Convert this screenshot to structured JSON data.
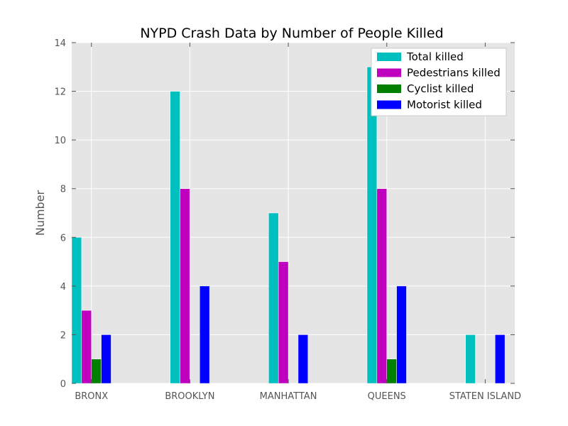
{
  "chart_data": {
    "type": "bar",
    "title": "NYPD Crash Data by Number of People Killed",
    "xlabel": "",
    "ylabel": "Number",
    "ylim": [
      0,
      14
    ],
    "yticks": [
      0,
      2,
      4,
      6,
      8,
      10,
      12,
      14
    ],
    "categories": [
      "BRONX",
      "BROOKLYN",
      "MANHATTAN",
      "QUEENS",
      "STATEN ISLAND"
    ],
    "series": [
      {
        "name": "Total killed",
        "color": "#00bfbf",
        "values": [
          6,
          12,
          7,
          13,
          2
        ]
      },
      {
        "name": "Pedestrians killed",
        "color": "#bf00bf",
        "values": [
          3,
          8,
          5,
          8,
          0
        ]
      },
      {
        "name": "Cyclist killed",
        "color": "#008000",
        "values": [
          1,
          0,
          0,
          1,
          0
        ]
      },
      {
        "name": "Motorist killed",
        "color": "#0000ff",
        "values": [
          2,
          4,
          2,
          4,
          2
        ]
      }
    ],
    "grid": true,
    "legend_position": "top-right",
    "background": "#e5e5e5"
  }
}
